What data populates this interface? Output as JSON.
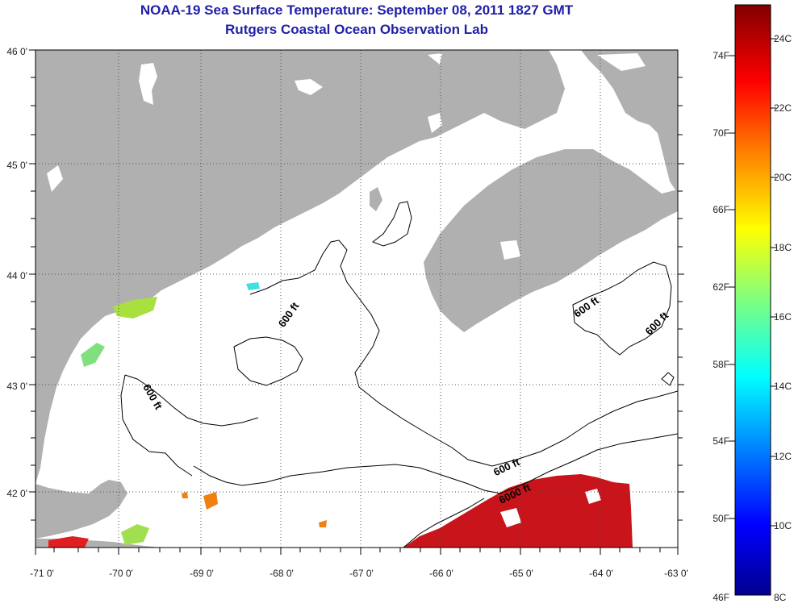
{
  "header": {
    "title": "NOAA-19 Sea Surface Temperature:  September 08, 2011 1827 GMT",
    "subtitle": "Rutgers Coastal Ocean Observation Lab"
  },
  "map": {
    "longitude_ticks": [
      "-71 0'",
      "-70 0'",
      "-69 0'",
      "-68 0'",
      "-67 0'",
      "-66 0'",
      "-65 0'",
      "-64 0'",
      "-63 0'"
    ],
    "latitude_ticks": [
      "46 0'",
      "45 0'",
      "44 0'",
      "43 0'",
      "42 0'"
    ],
    "contour_labels": [
      "600 ft",
      "600 ft",
      "600 ft",
      "600 ft",
      "600 ft",
      "6000 ft"
    ],
    "colors": {
      "land": "#b0b0b0",
      "ocean_cloud": "#ffffff",
      "grid": "#555555"
    }
  },
  "colorbar": {
    "fahrenheit_ticks": [
      "74F",
      "70F",
      "66F",
      "62F",
      "58F",
      "54F",
      "50F",
      "46F"
    ],
    "celsius_ticks": [
      "24C",
      "22C",
      "20C",
      "18C",
      "16C",
      "14C",
      "12C",
      "10C",
      "8C"
    ],
    "range_c": [
      8,
      25.2
    ]
  }
}
